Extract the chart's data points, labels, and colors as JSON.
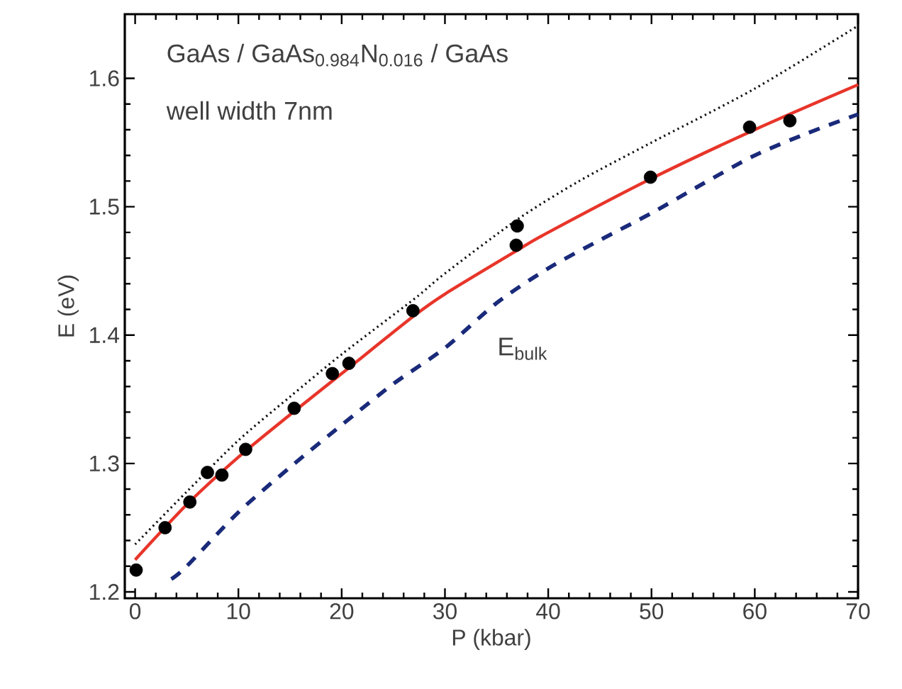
{
  "chart_data": {
    "type": "line",
    "xlabel": "P (kbar)",
    "ylabel": "E (eV)",
    "xlim": [
      -1,
      70
    ],
    "ylim": [
      1.195,
      1.65
    ],
    "xticks": [
      0,
      10,
      20,
      30,
      40,
      50,
      60,
      70
    ],
    "yticks": [
      1.2,
      1.3,
      1.4,
      1.5,
      1.6
    ],
    "annotations": [
      "GaAs / GaAs$_{0.984}$N$_{0.016}$ / GaAs",
      "well width 7nm",
      {
        "text": "E$_{bulk}$",
        "x": 33.5,
        "y": 1.415
      }
    ],
    "series": [
      {
        "color": "#111111",
        "line_style": "dotted",
        "x": [
          0,
          5,
          10,
          15,
          20,
          27,
          30,
          37,
          43,
          50,
          60,
          70
        ],
        "values": [
          1.237,
          1.278,
          1.318,
          1.352,
          1.385,
          1.428,
          1.448,
          1.49,
          1.52,
          1.55,
          1.592,
          1.641
        ]
      },
      {
        "color": "#e8352a",
        "line_style": "solid",
        "x": [
          0,
          5,
          10,
          15,
          20,
          27,
          30,
          37,
          40,
          50,
          60,
          70
        ],
        "values": [
          1.225,
          1.268,
          1.305,
          1.338,
          1.37,
          1.415,
          1.432,
          1.466,
          1.48,
          1.522,
          1.56,
          1.595
        ]
      },
      {
        "color": "#1a2a7a",
        "line_style": "dashed",
        "x": [
          3.5,
          5,
          10,
          15,
          20,
          25,
          30,
          35,
          40,
          45,
          50,
          55,
          60,
          65,
          70
        ],
        "values": [
          1.21,
          1.22,
          1.262,
          1.297,
          1.33,
          1.362,
          1.39,
          1.425,
          1.452,
          1.474,
          1.495,
          1.518,
          1.54,
          1.557,
          1.572
        ]
      },
      {
        "type": "scatter",
        "color": "#000000",
        "marker": "circle",
        "x": [
          0.1,
          2.9,
          5.3,
          7.0,
          8.4,
          10.7,
          15.4,
          19.1,
          20.7,
          26.9,
          36.9,
          37.0,
          49.9,
          59.5,
          63.4
        ],
        "values": [
          1.217,
          1.25,
          1.27,
          1.293,
          1.291,
          1.311,
          1.343,
          1.37,
          1.378,
          1.419,
          1.47,
          1.485,
          1.523,
          1.562,
          1.567
        ]
      }
    ]
  }
}
